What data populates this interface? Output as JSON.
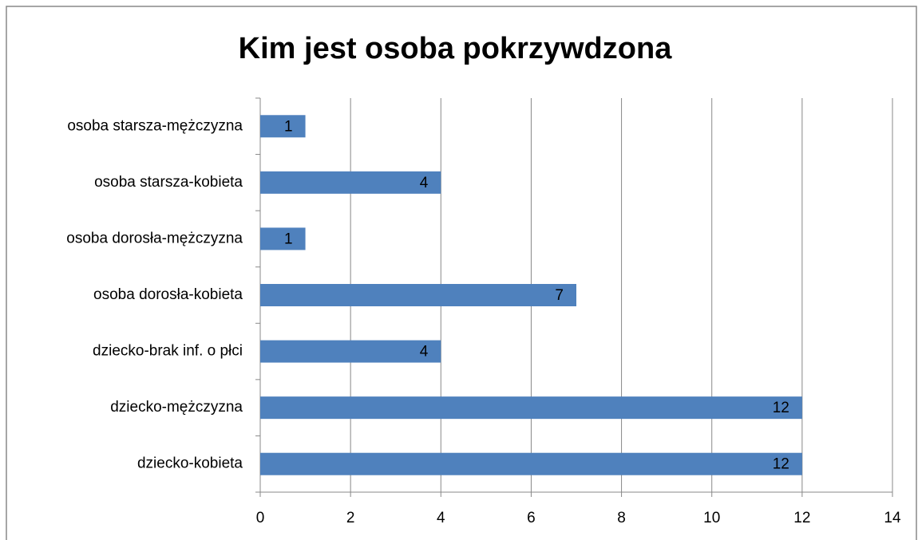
{
  "chart_data": {
    "type": "bar",
    "orientation": "horizontal",
    "title": "Kim jest osoba pokrzywdzona",
    "categories": [
      "osoba starsza-mężczyzna",
      "osoba starsza-kobieta",
      "osoba dorosła-mężczyzna",
      "osoba dorosła-kobieta",
      "dziecko-brak inf. o płci",
      "dziecko-mężczyzna",
      "dziecko-kobieta"
    ],
    "values": [
      1,
      4,
      1,
      7,
      4,
      12,
      12
    ],
    "color": "#4f81bd",
    "xlim": [
      0,
      14
    ],
    "xticks": [
      0,
      2,
      4,
      6,
      8,
      10,
      12,
      14
    ],
    "grid": true
  }
}
